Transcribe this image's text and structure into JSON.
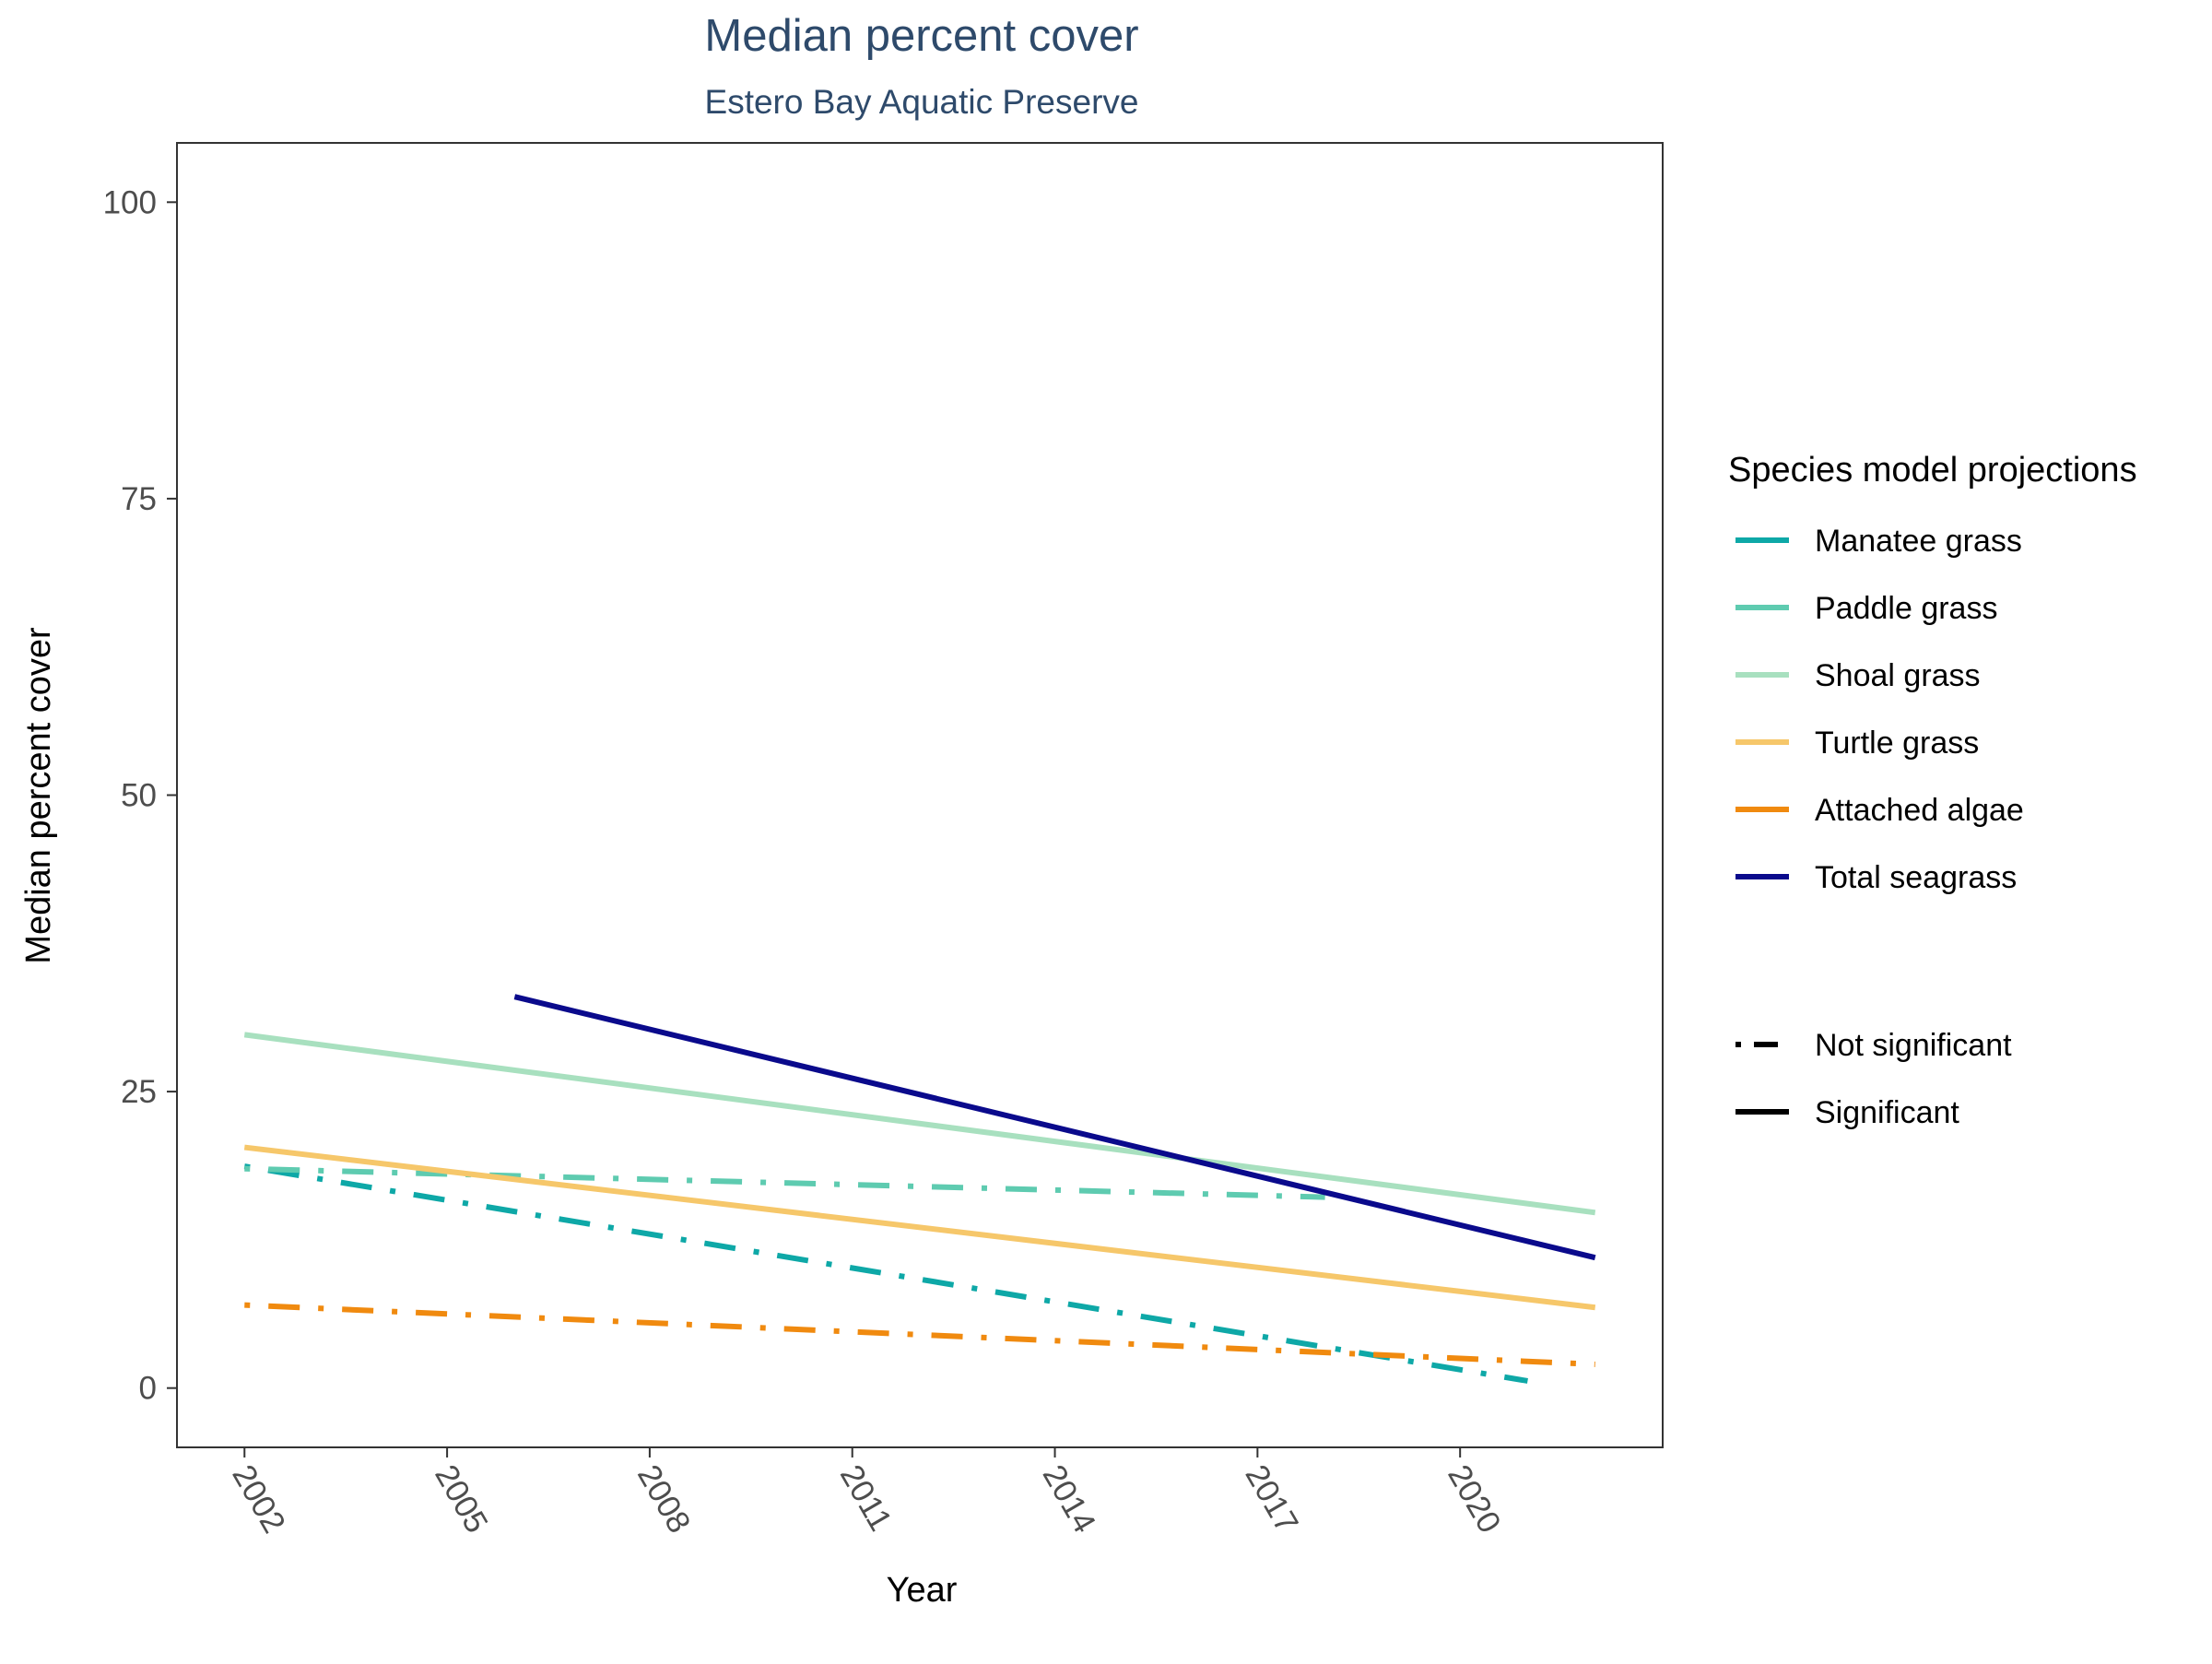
{
  "chart_data": {
    "type": "line",
    "title": "Median percent cover",
    "subtitle": "Estero Bay Aquatic Preserve",
    "xlabel": "Year",
    "ylabel": "Median percent cover",
    "xlim": [
      2001,
      2023
    ],
    "ylim": [
      -5,
      105
    ],
    "x_ticks": [
      2002,
      2005,
      2008,
      2011,
      2014,
      2017,
      2020
    ],
    "y_ticks": [
      0,
      25,
      50,
      75,
      100
    ],
    "grid": false,
    "legend_position": "right",
    "legend_title": "Species model projections",
    "series": [
      {
        "name": "Manatee grass",
        "color": "#0ea8a7",
        "significance": "Not significant",
        "x": [
          2002,
          2021
        ],
        "y": [
          18.7,
          0.6
        ]
      },
      {
        "name": "Paddle grass",
        "color": "#5ecbb0",
        "significance": "Not significant",
        "x": [
          2002,
          2018
        ],
        "y": [
          18.5,
          16.1
        ]
      },
      {
        "name": "Shoal grass",
        "color": "#a8e0bf",
        "significance": "Significant",
        "x": [
          2002,
          2022
        ],
        "y": [
          29.8,
          14.8
        ]
      },
      {
        "name": "Turtle grass",
        "color": "#f6c76a",
        "significance": "Significant",
        "x": [
          2002,
          2022
        ],
        "y": [
          20.3,
          6.8
        ]
      },
      {
        "name": "Attached algae",
        "color": "#f08a0f",
        "significance": "Not significant",
        "x": [
          2002,
          2022
        ],
        "y": [
          7.0,
          2.0
        ]
      },
      {
        "name": "Total seagrass",
        "color": "#0a0a8c",
        "significance": "Significant",
        "x": [
          2006,
          2022
        ],
        "y": [
          33.0,
          11.0
        ]
      }
    ],
    "linetype_legend": [
      {
        "label": "Not significant",
        "style": "dotdash"
      },
      {
        "label": "Significant",
        "style": "solid"
      }
    ]
  }
}
